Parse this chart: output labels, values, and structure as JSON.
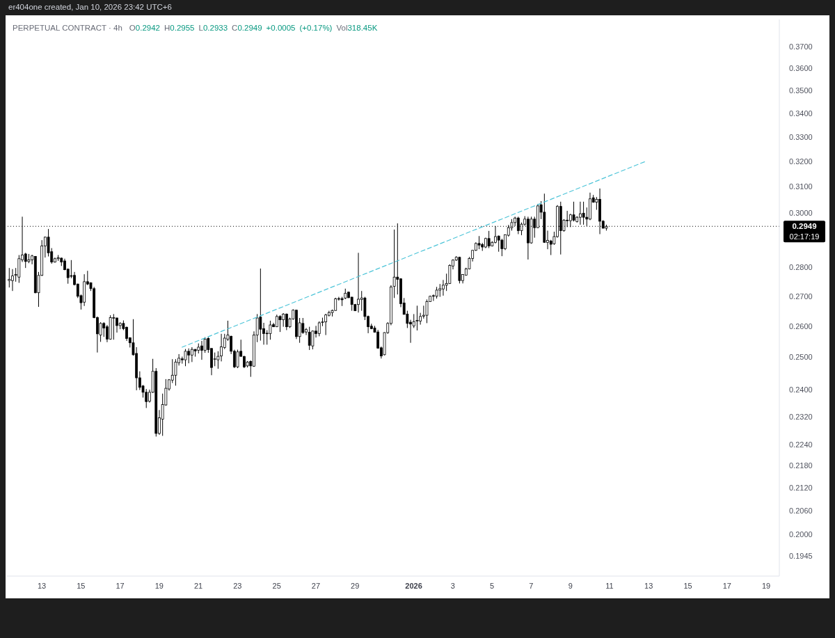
{
  "chart_data": {
    "type": "candlestick",
    "title": "PERPETUAL CONTRACT · 4h",
    "subtitle": "O0.2942 H0.2955 L0.2933 C0.2949 +0.0005 (+0.17%) Vol318.45K",
    "annotations": [
      "er404one created, Jan 10, 2026 23:42 UTC+6",
      "02:17:19"
    ],
    "color": "#000000",
    "log": true,
    "xlim": [
      "2025-12-11T05:20",
      "2026-01-19T16:10"
    ],
    "xticks": [
      {
        "value": "2025-12-13",
        "label": "13"
      },
      {
        "value": "2025-12-15",
        "label": "15"
      },
      {
        "value": "2025-12-17",
        "label": "17"
      },
      {
        "value": "2025-12-19",
        "label": "19"
      },
      {
        "value": "2025-12-21",
        "label": "21"
      },
      {
        "value": "2025-12-23",
        "label": "23"
      },
      {
        "value": "2025-12-25",
        "label": "25"
      },
      {
        "value": "2025-12-27",
        "label": "27"
      },
      {
        "value": "2025-12-29",
        "label": "29"
      },
      {
        "value": "2026-01-01",
        "label": "2026"
      },
      {
        "value": "2026-01-03",
        "label": "3"
      },
      {
        "value": "2026-01-05",
        "label": "5"
      },
      {
        "value": "2026-01-07",
        "label": "7"
      },
      {
        "value": "2026-01-09",
        "label": "9"
      },
      {
        "value": "2026-01-11",
        "label": "11"
      },
      {
        "value": "2026-01-13",
        "label": "13"
      },
      {
        "value": "2026-01-15",
        "label": "15"
      },
      {
        "value": "2026-01-17",
        "label": "17"
      },
      {
        "value": "2026-01-19",
        "label": "19"
      }
    ],
    "ylim": [
      0.1897,
      0.3828
    ],
    "yticks": [
      0.1945,
      {
        "value": 0.2,
        "label": "0.2000"
      },
      {
        "value": 0.206,
        "label": "0.2060"
      },
      {
        "value": 0.212,
        "label": "0.2120"
      },
      {
        "value": 0.218,
        "label": "0.2180"
      },
      {
        "value": 0.224,
        "label": "0.2240"
      },
      {
        "value": 0.232,
        "label": "0.2320"
      },
      {
        "value": 0.24,
        "label": "0.2400"
      },
      {
        "value": 0.25,
        "label": "0.2500"
      },
      {
        "value": 0.26,
        "label": "0.2600"
      },
      {
        "value": 0.27,
        "label": "0.2700"
      },
      {
        "value": 0.28,
        "label": "0.2800"
      },
      {
        "value": 0.3,
        "label": "0.3000"
      },
      {
        "value": 0.31,
        "label": "0.3100"
      },
      {
        "value": 0.32,
        "label": "0.3200"
      },
      {
        "value": 0.33,
        "label": "0.3300"
      },
      {
        "value": 0.34,
        "label": "0.3400"
      },
      {
        "value": 0.35,
        "label": "0.3500"
      },
      {
        "value": 0.36,
        "label": "0.3600"
      },
      {
        "value": 0.37,
        "label": "0.3700"
      }
    ],
    "ref_lines": [
      {
        "axis": "y",
        "value": 0.2949,
        "label": "0.2949",
        "color": "#000000",
        "line_style": "dotted"
      }
    ],
    "series": [
      {
        "type": "line",
        "x": [
          "2025-12-20T04:00",
          "2026-01-12T22:00"
        ],
        "values": [
          0.2532,
          0.3203
        ],
        "color": "#4cc4d8",
        "line_style": "dashed"
      }
    ],
    "x": [
      "2025-12-11T08:00",
      "2025-12-11T12:00",
      "2025-12-11T16:00",
      "2025-12-11T20:00",
      "2025-12-12T00:00",
      "2025-12-12T04:00",
      "2025-12-12T08:00",
      "2025-12-12T12:00",
      "2025-12-12T16:00",
      "2025-12-12T20:00",
      "2025-12-13T00:00",
      "2025-12-13T04:00",
      "2025-12-13T08:00",
      "2025-12-13T12:00",
      "2025-12-13T16:00",
      "2025-12-13T20:00",
      "2025-12-14T00:00",
      "2025-12-14T04:00",
      "2025-12-14T08:00",
      "2025-12-14T12:00",
      "2025-12-14T16:00",
      "2025-12-14T20:00",
      "2025-12-15T00:00",
      "2025-12-15T04:00",
      "2025-12-15T08:00",
      "2025-12-15T12:00",
      "2025-12-15T16:00",
      "2025-12-15T20:00",
      "2025-12-16T00:00",
      "2025-12-16T04:00",
      "2025-12-16T08:00",
      "2025-12-16T12:00",
      "2025-12-16T16:00",
      "2025-12-16T20:00",
      "2025-12-17T00:00",
      "2025-12-17T04:00",
      "2025-12-17T08:00",
      "2025-12-17T12:00",
      "2025-12-17T16:00",
      "2025-12-17T20:00",
      "2025-12-18T00:00",
      "2025-12-18T04:00",
      "2025-12-18T08:00",
      "2025-12-18T12:00",
      "2025-12-18T16:00",
      "2025-12-18T20:00",
      "2025-12-19T00:00",
      "2025-12-19T04:00",
      "2025-12-19T08:00",
      "2025-12-19T12:00",
      "2025-12-19T16:00",
      "2025-12-19T20:00",
      "2025-12-20T00:00",
      "2025-12-20T04:00",
      "2025-12-20T08:00",
      "2025-12-20T12:00",
      "2025-12-20T16:00",
      "2025-12-20T20:00",
      "2025-12-21T00:00",
      "2025-12-21T04:00",
      "2025-12-21T08:00",
      "2025-12-21T12:00",
      "2025-12-21T16:00",
      "2025-12-21T20:00",
      "2025-12-22T00:00",
      "2025-12-22T04:00",
      "2025-12-22T08:00",
      "2025-12-22T12:00",
      "2025-12-22T16:00",
      "2025-12-22T20:00",
      "2025-12-23T00:00",
      "2025-12-23T04:00",
      "2025-12-23T08:00",
      "2025-12-23T12:00",
      "2025-12-23T16:00",
      "2025-12-23T20:00",
      "2025-12-24T00:00",
      "2025-12-24T04:00",
      "2025-12-24T08:00",
      "2025-12-24T12:00",
      "2025-12-24T16:00",
      "2025-12-24T20:00",
      "2025-12-25T00:00",
      "2025-12-25T04:00",
      "2025-12-25T08:00",
      "2025-12-25T12:00",
      "2025-12-25T16:00",
      "2025-12-25T20:00",
      "2025-12-26T00:00",
      "2025-12-26T04:00",
      "2025-12-26T08:00",
      "2025-12-26T12:00",
      "2025-12-26T16:00",
      "2025-12-26T20:00",
      "2025-12-27T00:00",
      "2025-12-27T04:00",
      "2025-12-27T08:00",
      "2025-12-27T12:00",
      "2025-12-27T16:00",
      "2025-12-27T20:00",
      "2025-12-28T00:00",
      "2025-12-28T04:00",
      "2025-12-28T08:00",
      "2025-12-28T12:00",
      "2025-12-28T16:00",
      "2025-12-28T20:00",
      "2025-12-29T00:00",
      "2025-12-29T04:00",
      "2025-12-29T08:00",
      "2025-12-29T12:00",
      "2025-12-29T16:00",
      "2025-12-29T20:00",
      "2025-12-30T00:00",
      "2025-12-30T04:00",
      "2025-12-30T08:00",
      "2025-12-30T12:00",
      "2025-12-30T16:00",
      "2025-12-30T20:00",
      "2025-12-31T00:00",
      "2025-12-31T04:00",
      "2025-12-31T08:00",
      "2025-12-31T12:00",
      "2025-12-31T16:00",
      "2025-12-31T20:00",
      "2026-01-01T00:00",
      "2026-01-01T04:00",
      "2026-01-01T08:00",
      "2026-01-01T12:00",
      "2026-01-01T16:00",
      "2026-01-01T20:00",
      "2026-01-02T00:00",
      "2026-01-02T04:00",
      "2026-01-02T08:00",
      "2026-01-02T12:00",
      "2026-01-02T16:00",
      "2026-01-02T20:00",
      "2026-01-03T00:00",
      "2026-01-03T04:00",
      "2026-01-03T08:00",
      "2026-01-03T12:00",
      "2026-01-03T16:00",
      "2026-01-03T20:00",
      "2026-01-04T00:00",
      "2026-01-04T04:00",
      "2026-01-04T08:00",
      "2026-01-04T12:00",
      "2026-01-04T16:00",
      "2026-01-04T20:00",
      "2026-01-05T00:00",
      "2026-01-05T04:00",
      "2026-01-05T08:00",
      "2026-01-05T12:00",
      "2026-01-05T16:00",
      "2026-01-05T20:00",
      "2026-01-06T00:00",
      "2026-01-06T04:00",
      "2026-01-06T08:00",
      "2026-01-06T12:00",
      "2026-01-06T16:00",
      "2026-01-06T20:00",
      "2026-01-07T00:00",
      "2026-01-07T04:00",
      "2026-01-07T08:00",
      "2026-01-07T12:00",
      "2026-01-07T16:00",
      "2026-01-07T20:00",
      "2026-01-08T00:00",
      "2026-01-08T04:00",
      "2026-01-08T08:00",
      "2026-01-08T12:00",
      "2026-01-08T16:00",
      "2026-01-08T20:00",
      "2026-01-09T00:00",
      "2026-01-09T04:00",
      "2026-01-09T08:00",
      "2026-01-09T12:00",
      "2026-01-09T16:00",
      "2026-01-09T20:00",
      "2026-01-10T00:00",
      "2026-01-10T04:00",
      "2026-01-10T08:00",
      "2026-01-10T12:00",
      "2026-01-10T16:00",
      "2026-01-10T20:00"
    ],
    "ohlc": [
      [
        0.2754,
        0.2798,
        0.273,
        0.2758
      ],
      [
        0.2754,
        0.2794,
        0.2718,
        0.277
      ],
      [
        0.2772,
        0.2798,
        0.275,
        0.2775
      ],
      [
        0.2766,
        0.2844,
        0.2746,
        0.2831
      ],
      [
        0.2827,
        0.2985,
        0.2819,
        0.2844
      ],
      [
        0.2848,
        0.2852,
        0.2798,
        0.2821
      ],
      [
        0.2821,
        0.2848,
        0.2815,
        0.2827
      ],
      [
        0.2827,
        0.2845,
        0.2811,
        0.2841
      ],
      [
        0.2839,
        0.284,
        0.271,
        0.2712
      ],
      [
        0.2712,
        0.2784,
        0.2664,
        0.2772
      ],
      [
        0.2772,
        0.2898,
        0.277,
        0.2877
      ],
      [
        0.2877,
        0.2911,
        0.2835,
        0.2909
      ],
      [
        0.2909,
        0.2939,
        0.2839,
        0.2852
      ],
      [
        0.2856,
        0.2869,
        0.2813,
        0.2819
      ],
      [
        0.2819,
        0.2835,
        0.2817,
        0.2831
      ],
      [
        0.2831,
        0.2844,
        0.2823,
        0.2834
      ],
      [
        0.2833,
        0.2835,
        0.2805,
        0.2819
      ],
      [
        0.2823,
        0.2831,
        0.279,
        0.2792
      ],
      [
        0.2794,
        0.2796,
        0.2743,
        0.2764
      ],
      [
        0.2771,
        0.2826,
        0.2762,
        0.2769
      ],
      [
        0.2772,
        0.2784,
        0.2737,
        0.274
      ],
      [
        0.2742,
        0.2743,
        0.2694,
        0.27
      ],
      [
        0.2702,
        0.2706,
        0.2655,
        0.2678
      ],
      [
        0.268,
        0.2776,
        0.2667,
        0.275
      ],
      [
        0.275,
        0.2788,
        0.2738,
        0.2742
      ],
      [
        0.2746,
        0.2748,
        0.2718,
        0.2726
      ],
      [
        0.2726,
        0.2732,
        0.2626,
        0.2628
      ],
      [
        0.2628,
        0.2632,
        0.2515,
        0.2575
      ],
      [
        0.2571,
        0.2613,
        0.2549,
        0.2609
      ],
      [
        0.2609,
        0.2613,
        0.2565,
        0.2594
      ],
      [
        0.2598,
        0.2604,
        0.2548,
        0.2558
      ],
      [
        0.2558,
        0.2636,
        0.2556,
        0.2628
      ],
      [
        0.2627,
        0.264,
        0.2556,
        0.2628
      ],
      [
        0.2627,
        0.2628,
        0.2579,
        0.2602
      ],
      [
        0.2602,
        0.2613,
        0.259,
        0.2609
      ],
      [
        0.2609,
        0.2619,
        0.2587,
        0.2592
      ],
      [
        0.2596,
        0.2599,
        0.2552,
        0.256
      ],
      [
        0.2562,
        0.2564,
        0.2531,
        0.2546
      ],
      [
        0.2546,
        0.2623,
        0.2505,
        0.2508
      ],
      [
        0.2512,
        0.2532,
        0.2398,
        0.2436
      ],
      [
        0.2436,
        0.2456,
        0.2399,
        0.2407
      ],
      [
        0.2411,
        0.2414,
        0.2376,
        0.2392
      ],
      [
        0.2392,
        0.2402,
        0.2345,
        0.2364
      ],
      [
        0.2365,
        0.24,
        0.2361,
        0.2392
      ],
      [
        0.2392,
        0.2495,
        0.239,
        0.2456
      ],
      [
        0.2456,
        0.2466,
        0.2262,
        0.2271
      ],
      [
        0.2271,
        0.2339,
        0.2267,
        0.2316
      ],
      [
        0.2312,
        0.2388,
        0.2264,
        0.2355
      ],
      [
        0.2354,
        0.2432,
        0.2352,
        0.2404
      ],
      [
        0.2402,
        0.2432,
        0.2397,
        0.243
      ],
      [
        0.2429,
        0.2494,
        0.242,
        0.2444
      ],
      [
        0.2444,
        0.2494,
        0.2412,
        0.2485
      ],
      [
        0.2483,
        0.251,
        0.2474,
        0.2497
      ],
      [
        0.2495,
        0.2502,
        0.248,
        0.2492
      ],
      [
        0.2492,
        0.2526,
        0.2472,
        0.2519
      ],
      [
        0.2519,
        0.2528,
        0.2481,
        0.2507
      ],
      [
        0.2507,
        0.2532,
        0.2485,
        0.2525
      ],
      [
        0.2525,
        0.2526,
        0.2502,
        0.252
      ],
      [
        0.2522,
        0.2544,
        0.2512,
        0.2532
      ],
      [
        0.2536,
        0.2552,
        0.2492,
        0.2522
      ],
      [
        0.2522,
        0.2564,
        0.2514,
        0.2558
      ],
      [
        0.256,
        0.2564,
        0.2514,
        0.2524
      ],
      [
        0.2528,
        0.2528,
        0.2444,
        0.2468
      ],
      [
        0.2494,
        0.2515,
        0.2472,
        0.2495
      ],
      [
        0.2492,
        0.2519,
        0.2464,
        0.2503
      ],
      [
        0.2504,
        0.2575,
        0.2487,
        0.2533
      ],
      [
        0.2531,
        0.2575,
        0.2526,
        0.2561
      ],
      [
        0.2558,
        0.2618,
        0.2552,
        0.2571
      ],
      [
        0.2567,
        0.2569,
        0.251,
        0.2519
      ],
      [
        0.2519,
        0.2524,
        0.2466,
        0.247
      ],
      [
        0.247,
        0.2524,
        0.2466,
        0.2517
      ],
      [
        0.2519,
        0.2556,
        0.2501,
        0.2503
      ],
      [
        0.2502,
        0.2505,
        0.2466,
        0.247
      ],
      [
        0.2473,
        0.2488,
        0.2468,
        0.2485
      ],
      [
        0.2487,
        0.249,
        0.2439,
        0.2473
      ],
      [
        0.2472,
        0.2583,
        0.247,
        0.2571
      ],
      [
        0.2571,
        0.264,
        0.2548,
        0.2627
      ],
      [
        0.263,
        0.2796,
        0.2553,
        0.259
      ],
      [
        0.2592,
        0.2611,
        0.254,
        0.2576
      ],
      [
        0.2576,
        0.2587,
        0.254,
        0.2577
      ],
      [
        0.2576,
        0.2618,
        0.2556,
        0.2604
      ],
      [
        0.2605,
        0.2611,
        0.2597,
        0.2598
      ],
      [
        0.2598,
        0.2638,
        0.2597,
        0.2632
      ],
      [
        0.2632,
        0.2636,
        0.2581,
        0.2621
      ],
      [
        0.2621,
        0.2643,
        0.2598,
        0.264
      ],
      [
        0.264,
        0.2642,
        0.2587,
        0.2598
      ],
      [
        0.2598,
        0.2628,
        0.2594,
        0.2624
      ],
      [
        0.2624,
        0.2656,
        0.2621,
        0.2653
      ],
      [
        0.2653,
        0.2654,
        0.2558,
        0.2566
      ],
      [
        0.2566,
        0.2627,
        0.2546,
        0.2611
      ],
      [
        0.2609,
        0.2627,
        0.2575,
        0.2579
      ],
      [
        0.2581,
        0.2594,
        0.2571,
        0.2589
      ],
      [
        0.258,
        0.2598,
        0.2523,
        0.2538
      ],
      [
        0.2536,
        0.2586,
        0.2525,
        0.2584
      ],
      [
        0.2584,
        0.2601,
        0.2563,
        0.2576
      ],
      [
        0.2576,
        0.2616,
        0.2567,
        0.2611
      ],
      [
        0.2613,
        0.2628,
        0.26,
        0.2614
      ],
      [
        0.2614,
        0.2641,
        0.2571,
        0.2637
      ],
      [
        0.2636,
        0.2651,
        0.2632,
        0.2645
      ],
      [
        0.2645,
        0.2655,
        0.2632,
        0.2652
      ],
      [
        0.2652,
        0.2695,
        0.2651,
        0.2691
      ],
      [
        0.2691,
        0.2698,
        0.2685,
        0.2692
      ],
      [
        0.2692,
        0.2698,
        0.2667,
        0.2688
      ],
      [
        0.2694,
        0.2726,
        0.269,
        0.271
      ],
      [
        0.2714,
        0.2716,
        0.2694,
        0.2695
      ],
      [
        0.2697,
        0.2698,
        0.2651,
        0.2672
      ],
      [
        0.2672,
        0.2674,
        0.265,
        0.2651
      ],
      [
        0.2672,
        0.2852,
        0.2645,
        0.269
      ],
      [
        0.2689,
        0.2718,
        0.2651,
        0.2694
      ],
      [
        0.2694,
        0.2698,
        0.262,
        0.2632
      ],
      [
        0.2632,
        0.2635,
        0.2577,
        0.2598
      ],
      [
        0.26,
        0.2608,
        0.259,
        0.2592
      ],
      [
        0.2594,
        0.2601,
        0.2579,
        0.258
      ],
      [
        0.2581,
        0.2588,
        0.2527,
        0.2529
      ],
      [
        0.253,
        0.2534,
        0.2496,
        0.2504
      ],
      [
        0.2508,
        0.258,
        0.2506,
        0.2579
      ],
      [
        0.2579,
        0.2613,
        0.2575,
        0.2609
      ],
      [
        0.2609,
        0.2738,
        0.2603,
        0.2732
      ],
      [
        0.2734,
        0.2937,
        0.2694,
        0.2766
      ],
      [
        0.2766,
        0.296,
        0.2706,
        0.2758
      ],
      [
        0.276,
        0.2762,
        0.2663,
        0.2675
      ],
      [
        0.2677,
        0.2694,
        0.2638,
        0.2639
      ],
      [
        0.264,
        0.2651,
        0.2594,
        0.2609
      ],
      [
        0.2613,
        0.2621,
        0.2546,
        0.2607
      ],
      [
        0.2601,
        0.264,
        0.2594,
        0.2615
      ],
      [
        0.2617,
        0.2668,
        0.2586,
        0.2619
      ],
      [
        0.2617,
        0.2644,
        0.2605,
        0.2632
      ],
      [
        0.2633,
        0.2668,
        0.2625,
        0.2636
      ],
      [
        0.2636,
        0.2689,
        0.261,
        0.2682
      ],
      [
        0.2682,
        0.2702,
        0.2682,
        0.27
      ],
      [
        0.2701,
        0.2706,
        0.2684,
        0.2702
      ],
      [
        0.27,
        0.2732,
        0.2692,
        0.2721
      ],
      [
        0.2721,
        0.2742,
        0.2698,
        0.2726
      ],
      [
        0.2725,
        0.2756,
        0.2702,
        0.2738
      ],
      [
        0.2738,
        0.2778,
        0.2718,
        0.2744
      ],
      [
        0.2744,
        0.2811,
        0.2742,
        0.2807
      ],
      [
        0.2805,
        0.2829,
        0.2793,
        0.2826
      ],
      [
        0.2826,
        0.284,
        0.2823,
        0.2836
      ],
      [
        0.2836,
        0.2838,
        0.2744,
        0.2754
      ],
      [
        0.2754,
        0.2776,
        0.2744,
        0.2775
      ],
      [
        0.2773,
        0.2799,
        0.2771,
        0.2795
      ],
      [
        0.2795,
        0.2837,
        0.2793,
        0.2832
      ],
      [
        0.2832,
        0.2862,
        0.2821,
        0.2861
      ],
      [
        0.2861,
        0.289,
        0.2859,
        0.2886
      ],
      [
        0.2886,
        0.2913,
        0.2865,
        0.288
      ],
      [
        0.2882,
        0.2888,
        0.2859,
        0.2873
      ],
      [
        0.2873,
        0.2907,
        0.2869,
        0.2904
      ],
      [
        0.2904,
        0.2932,
        0.2869,
        0.2877
      ],
      [
        0.2877,
        0.2894,
        0.2875,
        0.289
      ],
      [
        0.289,
        0.295,
        0.2886,
        0.2911
      ],
      [
        0.2913,
        0.2915,
        0.2856,
        0.2898
      ],
      [
        0.2898,
        0.2903,
        0.284,
        0.2867
      ],
      [
        0.2867,
        0.2919,
        0.2862,
        0.2918
      ],
      [
        0.2916,
        0.2954,
        0.2911,
        0.2944
      ],
      [
        0.2944,
        0.2976,
        0.2933,
        0.2963
      ],
      [
        0.2963,
        0.2985,
        0.295,
        0.298
      ],
      [
        0.298,
        0.2985,
        0.292,
        0.2933
      ],
      [
        0.2933,
        0.2963,
        0.2916,
        0.2957
      ],
      [
        0.2957,
        0.2987,
        0.2951,
        0.2976
      ],
      [
        0.2976,
        0.2985,
        0.2828,
        0.2888
      ],
      [
        0.2888,
        0.2985,
        0.2885,
        0.2976
      ],
      [
        0.2976,
        0.2985,
        0.2907,
        0.2944
      ],
      [
        0.2944,
        0.3033,
        0.2942,
        0.3026
      ],
      [
        0.303,
        0.3044,
        0.2976,
        0.3002
      ],
      [
        0.3002,
        0.3073,
        0.2888,
        0.289
      ],
      [
        0.289,
        0.2933,
        0.2865,
        0.2897
      ],
      [
        0.2895,
        0.2899,
        0.2844,
        0.2883
      ],
      [
        0.2885,
        0.2929,
        0.2881,
        0.2911
      ],
      [
        0.2911,
        0.3029,
        0.2907,
        0.3024
      ],
      [
        0.3024,
        0.3042,
        0.2846,
        0.2933
      ],
      [
        0.2933,
        0.2976,
        0.2929,
        0.2972
      ],
      [
        0.2972,
        0.3007,
        0.2946,
        0.297
      ],
      [
        0.297,
        0.2996,
        0.2946,
        0.2992
      ],
      [
        0.2992,
        0.3042,
        0.2967,
        0.2972
      ],
      [
        0.2967,
        0.2987,
        0.2963,
        0.2983
      ],
      [
        0.2983,
        0.3042,
        0.2955,
        0.2996
      ],
      [
        0.2998,
        0.3042,
        0.2955,
        0.2983
      ],
      [
        0.2983,
        0.302,
        0.295,
        0.2976
      ],
      [
        0.2976,
        0.3077,
        0.2972,
        0.3053
      ],
      [
        0.3057,
        0.3068,
        0.3038,
        0.304
      ],
      [
        0.304,
        0.306,
        0.3011,
        0.3051
      ],
      [
        0.3051,
        0.3093,
        0.292,
        0.2968
      ],
      [
        0.2968,
        0.2972,
        0.2941,
        0.2942
      ],
      [
        0.2942,
        0.2955,
        0.2933,
        0.2949
      ]
    ]
  }
}
